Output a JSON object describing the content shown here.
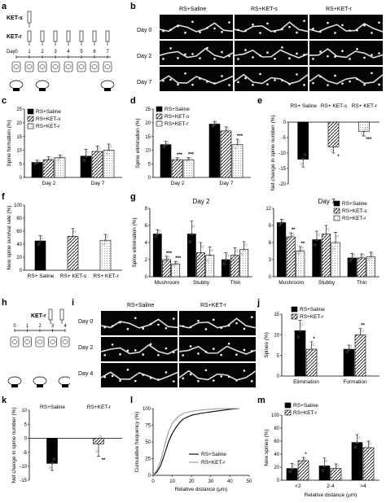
{
  "panel_labels": [
    "a",
    "b",
    "c",
    "d",
    "e",
    "f",
    "g",
    "h",
    "i",
    "j",
    "k",
    "l",
    "m"
  ],
  "a": {
    "drug1": "KET-s",
    "drug2": "KET-r",
    "day_label": "Day",
    "days": [
      "0",
      "1",
      "2",
      "3",
      "4",
      "5",
      "6",
      "7"
    ]
  },
  "b": {
    "columns": [
      "RS+Saline",
      "RS+KET-s",
      "RS+KET-r"
    ],
    "rows": [
      "Day 0",
      "Day 2",
      "Day 7"
    ]
  },
  "h": {
    "drug": "KET-r",
    "days": [
      "0",
      "1",
      "2",
      "3",
      "4"
    ]
  },
  "i": {
    "columns": [
      "RS+Saline",
      "RS+KET-r"
    ],
    "rows": [
      "Day 0",
      "Day 2",
      "Day 4"
    ]
  },
  "chart_data": [
    {
      "id": "c",
      "type": "bar",
      "ylabel": "Spine formation (%)",
      "ylim": [
        0,
        25
      ],
      "yticks": [
        0,
        5,
        10,
        15,
        20,
        25
      ],
      "categories": [
        "Day 2",
        "Day 7"
      ],
      "series": [
        {
          "name": "RS+Saline",
          "values": [
            5.5,
            7.8
          ],
          "err": [
            0.8,
            2.5
          ]
        },
        {
          "name": "RS+KET-s",
          "values": [
            6.5,
            9.5
          ],
          "err": [
            1,
            2
          ]
        },
        {
          "name": "RS+KET-r",
          "values": [
            7.2,
            10
          ],
          "err": [
            1,
            2.2
          ]
        }
      ],
      "sig": []
    },
    {
      "id": "d",
      "type": "bar",
      "ylabel": "Spine elimination (%)",
      "ylim": [
        0,
        25
      ],
      "yticks": [
        0,
        5,
        10,
        15,
        20,
        25
      ],
      "categories": [
        "Day 2",
        "Day 7"
      ],
      "series": [
        {
          "name": "RS+Saline",
          "values": [
            12,
            19.5
          ],
          "err": [
            1.2,
            1
          ]
        },
        {
          "name": "RS+KET-s",
          "values": [
            6.5,
            17
          ],
          "err": [
            0.7,
            1.5
          ]
        },
        {
          "name": "RS+KET-r",
          "values": [
            6.5,
            12
          ],
          "err": [
            0.8,
            2
          ]
        }
      ],
      "sig": [
        {
          "s": 1,
          "c": 0,
          "t": "***"
        },
        {
          "s": 2,
          "c": 0,
          "t": "***"
        },
        {
          "s": 2,
          "c": 1,
          "t": "***"
        }
      ]
    },
    {
      "id": "e",
      "type": "bar",
      "ylabel": "Net change in spine number (%)",
      "ylim": [
        -20,
        0
      ],
      "yticks": [
        0,
        -5,
        -10,
        -15,
        -20
      ],
      "categories": [
        "RS+ Saline",
        "RS+ KET-s",
        "RS+ KET-r"
      ],
      "series": [
        {
          "name": "",
          "values": [
            -12,
            -8,
            -3
          ],
          "err": [
            2.5,
            2,
            1.5
          ]
        }
      ],
      "sig": [
        {
          "s": 0,
          "c": 1,
          "t": "*"
        },
        {
          "s": 0,
          "c": 2,
          "t": "***"
        }
      ]
    },
    {
      "id": "f",
      "type": "bar",
      "ylabel": "New spine survival rate (%)",
      "ylim": [
        0,
        100
      ],
      "yticks": [
        0,
        20,
        40,
        60,
        80,
        100
      ],
      "categories": [
        "RS+ Saline",
        "RS+ KET-s",
        "RS+ KET-r"
      ],
      "series": [
        {
          "name": "",
          "values": [
            45,
            52,
            46
          ],
          "err": [
            8,
            12,
            9
          ]
        }
      ],
      "sig": []
    },
    {
      "id": "g1",
      "type": "bar",
      "title": "Day 2",
      "ylabel": "Spine elimination (%)",
      "ylim": [
        0,
        8
      ],
      "yticks": [
        0,
        2,
        4,
        6,
        8
      ],
      "categories": [
        "Mushroom",
        "Stubby",
        "Thin"
      ],
      "series": [
        {
          "name": "RS+Saline",
          "values": [
            5,
            5,
            2
          ],
          "err": [
            0.5,
            1.5,
            0.8
          ]
        },
        {
          "name": "RS+KET-s",
          "values": [
            2,
            2.8,
            2.5
          ],
          "err": [
            0.4,
            1.2,
            0.9
          ]
        },
        {
          "name": "RS+KET-r",
          "values": [
            1.5,
            2.5,
            3.2
          ],
          "err": [
            0.3,
            1,
            0.9
          ]
        }
      ],
      "sig": [
        {
          "s": 1,
          "c": 0,
          "t": "***"
        },
        {
          "s": 2,
          "c": 0,
          "t": "***"
        }
      ]
    },
    {
      "id": "g2",
      "type": "bar",
      "title": "Day 7",
      "ylabel": "",
      "ylim": [
        0,
        12
      ],
      "yticks": [
        0,
        3,
        6,
        9,
        12
      ],
      "categories": [
        "Mushroom",
        "Stubby",
        "Thin"
      ],
      "series": [
        {
          "name": "RS+Saline",
          "values": [
            9.5,
            6.5,
            3.3
          ],
          "err": [
            0.6,
            1.5,
            0.8
          ]
        },
        {
          "name": "RS+KET-s",
          "values": [
            7,
            7.5,
            3.3
          ],
          "err": [
            0.7,
            1.5,
            0.7
          ]
        },
        {
          "name": "RS+KET-r",
          "values": [
            4.5,
            6,
            3.5
          ],
          "err": [
            0.8,
            1.8,
            0.8
          ]
        }
      ],
      "sig": [
        {
          "s": 1,
          "c": 0,
          "t": "**"
        },
        {
          "s": 2,
          "c": 0,
          "t": "**"
        }
      ]
    },
    {
      "id": "j",
      "type": "bar",
      "ylabel": "Spines (%)",
      "ylim": [
        0,
        15
      ],
      "yticks": [
        0,
        5,
        10,
        15
      ],
      "categories": [
        "Elimination",
        "Formation"
      ],
      "series": [
        {
          "name": "RS+Saline",
          "values": [
            11,
            6.5
          ],
          "err": [
            2.5,
            1
          ]
        },
        {
          "name": "RS+KET-r",
          "values": [
            6.5,
            10
          ],
          "err": [
            1.8,
            1.5
          ]
        }
      ],
      "sig": [
        {
          "s": 1,
          "c": 0,
          "t": "*"
        },
        {
          "s": 1,
          "c": 1,
          "t": "**"
        }
      ]
    },
    {
      "id": "k",
      "type": "bar",
      "ylabel": "Net change in spine number (%)",
      "ylim": [
        -15,
        10
      ],
      "yticks": [
        10,
        5,
        0,
        -5,
        -10,
        -15
      ],
      "categories": [
        "RS+Saline",
        "RS+KET-r"
      ],
      "series": [
        {
          "name": "",
          "values": [
            -9,
            -2
          ],
          "err": [
            2.5,
            4.5
          ]
        }
      ],
      "sig": [
        {
          "s": 0,
          "c": 1,
          "t": "**"
        }
      ]
    },
    {
      "id": "l",
      "type": "line",
      "ylabel": "Cumulative frequency (%)",
      "xlabel": "Relative distance (μm)",
      "xlim": [
        0,
        50
      ],
      "ylim": [
        0,
        100
      ],
      "xticks": [
        0,
        10,
        20,
        30,
        40,
        50
      ],
      "yticks": [
        0,
        25,
        50,
        75,
        100
      ],
      "series": [
        {
          "name": "RS+Saline",
          "x": [
            0,
            2,
            4,
            6,
            8,
            10,
            12,
            14,
            16,
            20,
            25,
            30,
            35,
            40,
            45
          ],
          "y": [
            0,
            5,
            15,
            32,
            50,
            63,
            72,
            80,
            85,
            90,
            93,
            95,
            97,
            99,
            100
          ]
        },
        {
          "name": "RS+KET-r",
          "x": [
            0,
            2,
            4,
            6,
            8,
            10,
            12,
            14,
            16,
            20,
            25,
            30,
            35,
            40,
            45
          ],
          "y": [
            0,
            8,
            22,
            45,
            65,
            78,
            85,
            90,
            93,
            96,
            98,
            99,
            100,
            100,
            100
          ]
        }
      ]
    },
    {
      "id": "m",
      "type": "bar",
      "ylabel": "New spines (%)",
      "xlabel": "Relative distance (μm)",
      "ylim": [
        0,
        100
      ],
      "yticks": [
        0,
        20,
        40,
        60,
        80,
        100
      ],
      "categories": [
        "<2",
        "2-4",
        ">4"
      ],
      "series": [
        {
          "name": "RS+Saline",
          "values": [
            18,
            22,
            58
          ],
          "err": [
            8,
            12,
            12
          ]
        },
        {
          "name": "RS+KET-r",
          "values": [
            30,
            18,
            50
          ],
          "err": [
            5,
            7,
            10
          ]
        }
      ],
      "sig": [
        {
          "s": 1,
          "c": 0,
          "t": "*"
        }
      ]
    }
  ]
}
